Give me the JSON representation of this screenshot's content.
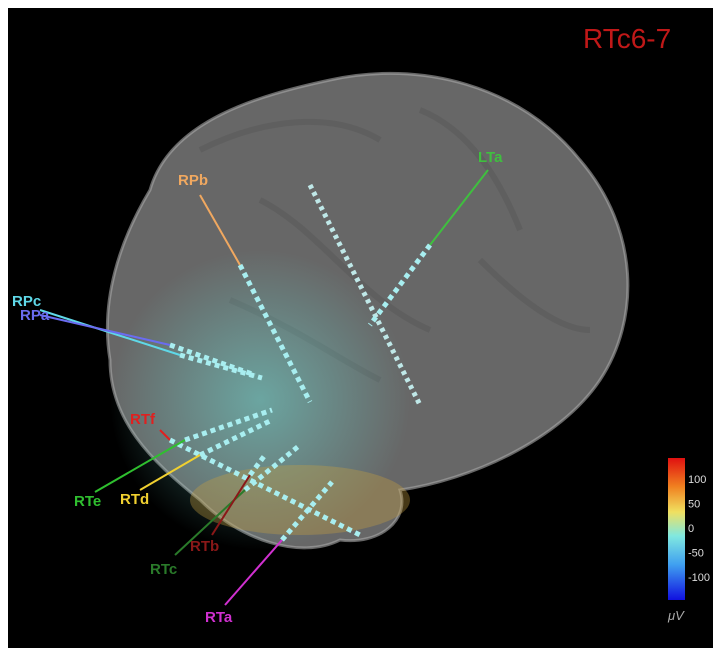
{
  "title": "RTc6-7",
  "electrodes": [
    {
      "label": "LTa",
      "color": "#3fbf3f"
    },
    {
      "label": "RPb",
      "color": "#f0a860"
    },
    {
      "label": "RPc",
      "color": "#5fd8e8"
    },
    {
      "label": "RPa",
      "color": "#6a6cf0"
    },
    {
      "label": "RTf",
      "color": "#e02020"
    },
    {
      "label": "RTe",
      "color": "#2fbf2f"
    },
    {
      "label": "RTd",
      "color": "#f0d030"
    },
    {
      "label": "RTc",
      "color": "#2a7a2a"
    },
    {
      "label": "RTb",
      "color": "#8a1818"
    },
    {
      "label": "RTa",
      "color": "#d030d0"
    }
  ],
  "colorbar": {
    "ticks": [
      100,
      50,
      0,
      -50,
      -100
    ],
    "unit": "μV"
  }
}
